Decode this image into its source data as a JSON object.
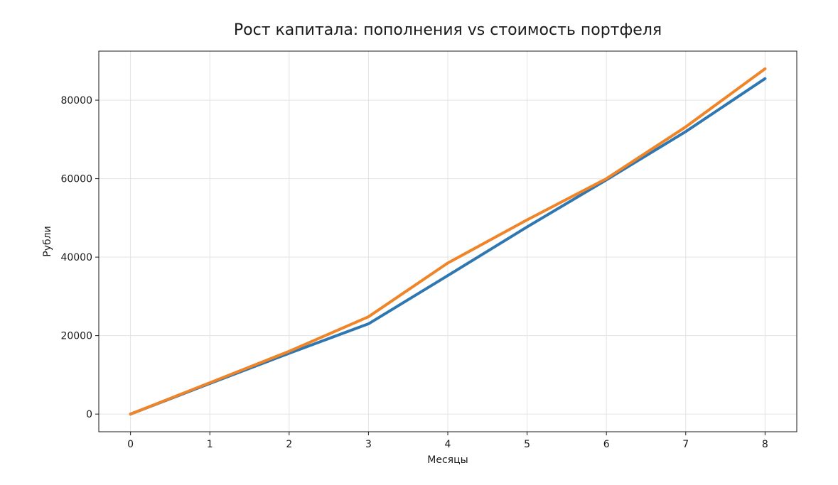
{
  "colors": {
    "contributions": "#2f77b1",
    "portfolio": "#ef8528"
  },
  "chart_data": {
    "type": "line",
    "title": "Рост капитала: пополнения vs стоимость портфеля",
    "xlabel": "Месяцы",
    "ylabel": "Рубли",
    "x": [
      0,
      1,
      2,
      3,
      4,
      5,
      6,
      7,
      8
    ],
    "xlim": [
      -0.4,
      8.4
    ],
    "ylim": [
      -4500,
      92500
    ],
    "xticks": [
      0,
      1,
      2,
      3,
      4,
      5,
      6,
      7,
      8
    ],
    "yticks": [
      0,
      20000,
      40000,
      60000,
      80000
    ],
    "grid": true,
    "series": [
      {
        "key": "contributions",
        "values": [
          0,
          7800,
          15500,
          23000,
          35300,
          47700,
          59700,
          72000,
          85500
        ]
      },
      {
        "key": "portfolio",
        "values": [
          0,
          8000,
          16000,
          24800,
          38500,
          49500,
          60000,
          73200,
          88000
        ]
      }
    ]
  }
}
